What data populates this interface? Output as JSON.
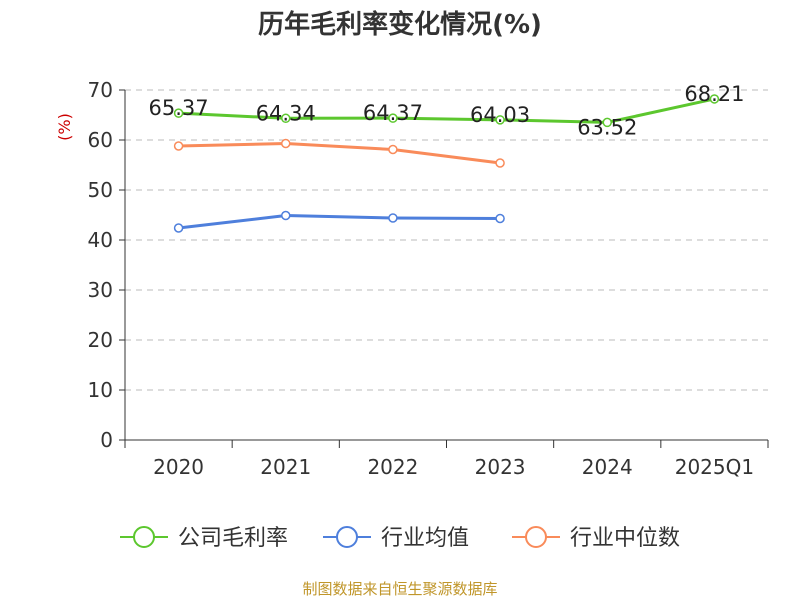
{
  "chart_data": {
    "type": "line",
    "title": "历年毛利率变化情况(%)",
    "ylabel": "(%)",
    "xlabel": "",
    "categories": [
      "2020",
      "2021",
      "2022",
      "2023",
      "2024",
      "2025Q1"
    ],
    "ylim": [
      0,
      70
    ],
    "yticks": [
      "0",
      "10",
      "20",
      "30",
      "40",
      "50",
      "60",
      "70"
    ],
    "grid": true,
    "legend_position": "bottom",
    "series": [
      {
        "name": "公司毛利率",
        "color": "#5cc72e",
        "values": [
          65.37,
          64.34,
          64.37,
          64.03,
          63.52,
          68.21
        ],
        "labels": [
          "65.37",
          "64.34",
          "64.37",
          "64.03",
          "63.52",
          "68.21"
        ]
      },
      {
        "name": "行业均值",
        "color": "#4e7fdc",
        "values": [
          42.4,
          44.9,
          44.4,
          44.3,
          null,
          null
        ]
      },
      {
        "name": "行业中位数",
        "color": "#f98b5a",
        "values": [
          58.8,
          59.3,
          58.1,
          55.4,
          null,
          null
        ]
      }
    ]
  },
  "source_text": "制图数据来自恒生聚源数据库"
}
